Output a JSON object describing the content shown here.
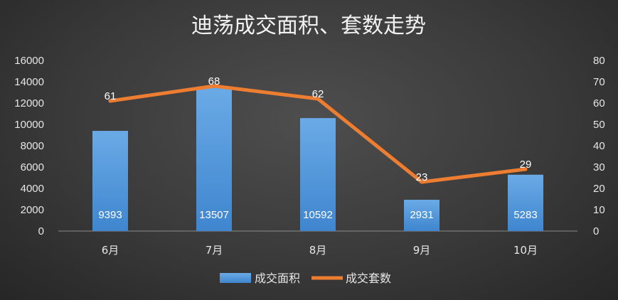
{
  "chart_data": {
    "type": "bar+line",
    "title": "迪荡成交面积、套数走势",
    "categories": [
      "6月",
      "7月",
      "8月",
      "9月",
      "10月"
    ],
    "series": [
      {
        "name": "成交面积",
        "type": "bar",
        "axis": "left",
        "values": [
          9393,
          13507,
          10592,
          2931,
          5283
        ]
      },
      {
        "name": "成交套数",
        "type": "line",
        "axis": "right",
        "values": [
          61,
          68,
          62,
          23,
          29
        ]
      }
    ],
    "y_left": {
      "min": 0,
      "max": 16000,
      "ticks": [
        "0",
        "2000",
        "4000",
        "6000",
        "8000",
        "10000",
        "12000",
        "14000",
        "16000"
      ]
    },
    "y_right": {
      "min": 0,
      "max": 80,
      "ticks": [
        "0",
        "10",
        "20",
        "30",
        "40",
        "50",
        "60",
        "70",
        "80"
      ]
    },
    "legend_position": "bottom",
    "grid": false,
    "colors": {
      "bar": "#5b9bd5",
      "line": "#ed7d31"
    }
  }
}
